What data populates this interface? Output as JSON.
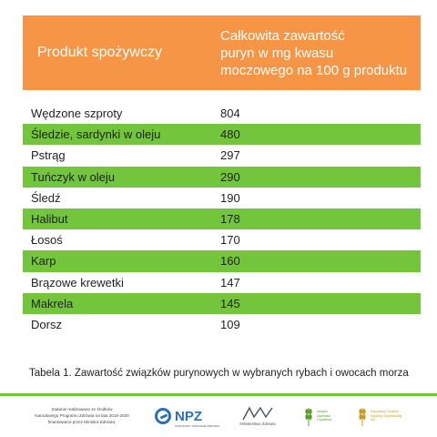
{
  "table": {
    "header": {
      "col1": "Produkt spożywczy",
      "col2_lines": [
        "Całkowita zawartość",
        "puryn w mg kwasu",
        "moczowego na 100 g produktu"
      ]
    },
    "rows": [
      {
        "product": "Wędzone szproty",
        "value": "804"
      },
      {
        "product": "Śledzie, sardynki w oleju",
        "value": "480"
      },
      {
        "product": "Pstrąg",
        "value": "297"
      },
      {
        "product": "Tuńczyk w oleju",
        "value": "290"
      },
      {
        "product": "Śledź",
        "value": "190"
      },
      {
        "product": "Halibut",
        "value": "178"
      },
      {
        "product": "Łosoś",
        "value": "170"
      },
      {
        "product": "Karp",
        "value": "160"
      },
      {
        "product": "Brązowe krewetki",
        "value": "147"
      },
      {
        "product": "Makrela",
        "value": "145"
      },
      {
        "product": "Dorsz",
        "value": "109"
      }
    ]
  },
  "caption": "Tabela 1. Zawartość związków purynowych w wybranych rybach i owocach morza",
  "footer": {
    "note_lines": [
      "Zadanie realizowane ze środków",
      "Narodowego Programu Zdrowia na lata 2016-2020",
      "finansowane przez Ministra Zdrowia."
    ],
    "npz_label": "NPZ",
    "npz_sub": "NARODOWY PROGRAM ZDROWIA",
    "mz_label": "Ministerstwo Zdrowia",
    "izz_lines": [
      "Instytut",
      "Żywności",
      "i Żywienia"
    ],
    "ncez_lines": [
      "Narodowe Centrum",
      "Edukacji Żywieniowej",
      "IŻŻ"
    ]
  },
  "colors": {
    "header_bg": "#f59545",
    "row_highlight": "#73c63c",
    "npz_blue": "#2b6fb7"
  }
}
